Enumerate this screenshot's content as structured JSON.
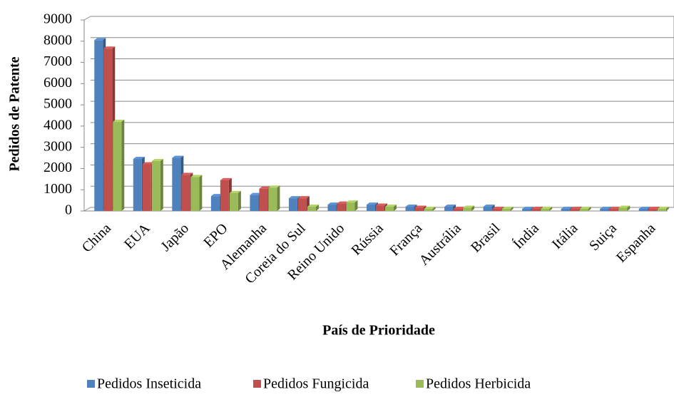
{
  "chart_data": {
    "type": "bar",
    "y_label": "Pedidos de Patente",
    "x_label": "País de Prioridade",
    "categories": [
      "China",
      "EUA",
      "Japão",
      "EPO",
      "Alemanha",
      "Coreia do Sul",
      "Reino Unido",
      "Rússia",
      "França",
      "Austrália",
      "Brasil",
      "Índia",
      "Itália",
      "Suiça",
      "Espanha"
    ],
    "series": [
      {
        "name": "Pedidos Inseticida",
        "color": "#4f81bd",
        "values": [
          8050,
          2450,
          2500,
          700,
          750,
          600,
          300,
          300,
          200,
          200,
          200,
          100,
          100,
          100,
          100
        ]
      },
      {
        "name": "Pedidos Fungicida",
        "color": "#c0504d",
        "values": [
          7650,
          2200,
          1700,
          1450,
          1050,
          600,
          350,
          250,
          150,
          100,
          100,
          100,
          100,
          100,
          100
        ]
      },
      {
        "name": "Pedidos Herbicida",
        "color": "#9bbb59",
        "values": [
          4200,
          2350,
          1600,
          850,
          1100,
          200,
          400,
          200,
          100,
          150,
          100,
          100,
          100,
          150,
          100
        ]
      }
    ],
    "ylim": [
      0,
      9000
    ],
    "yticks": [
      0,
      1000,
      2000,
      3000,
      4000,
      5000,
      6000,
      7000,
      8000,
      9000
    ],
    "grid": true,
    "legend": "bottom"
  }
}
